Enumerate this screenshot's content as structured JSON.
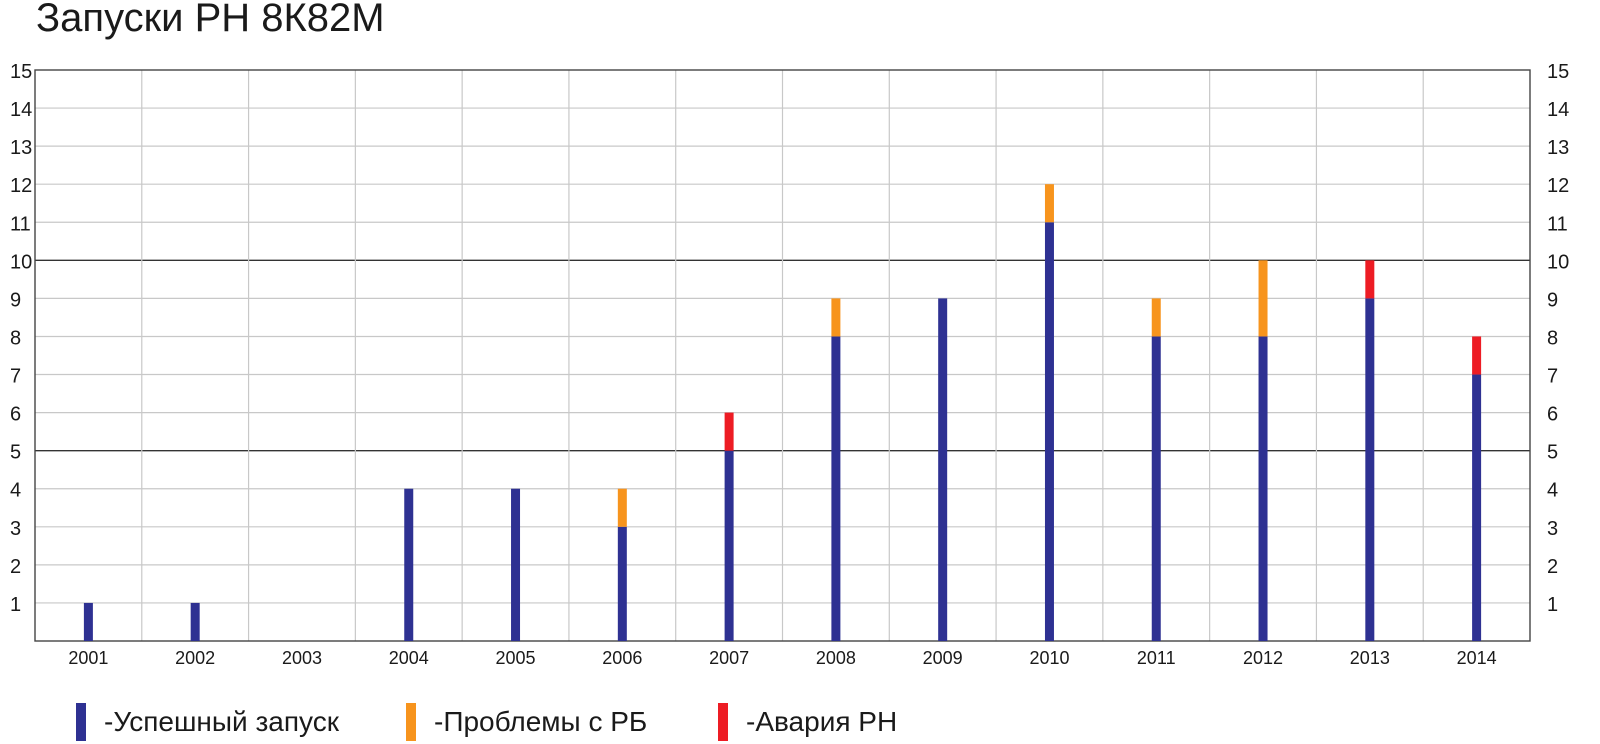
{
  "chart_data": {
    "type": "bar",
    "stacked": true,
    "title": "Запуски РН 8К82М",
    "xlabel": "",
    "ylabel": "",
    "ylim": [
      0,
      15
    ],
    "y_ticks": [
      1,
      2,
      3,
      4,
      5,
      6,
      7,
      8,
      9,
      10,
      11,
      12,
      13,
      14,
      15
    ],
    "y_axis_both_sides": true,
    "grid": true,
    "emphasized_gridlines": [
      5,
      10
    ],
    "categories": [
      "2001",
      "2002",
      "2003",
      "2004",
      "2005",
      "2006",
      "2007",
      "2008",
      "2009",
      "2010",
      "2011",
      "2012",
      "2013",
      "2014"
    ],
    "series": [
      {
        "name": "-Успешный запуск",
        "color": "#2e3192",
        "values": [
          1,
          1,
          0,
          4,
          4,
          3,
          5,
          8,
          9,
          11,
          8,
          8,
          9,
          7
        ]
      },
      {
        "name": "-Проблемы с РБ",
        "color": "#f7941d",
        "values": [
          0,
          0,
          0,
          0,
          0,
          1,
          0,
          1,
          0,
          1,
          1,
          2,
          0,
          0
        ]
      },
      {
        "name": "-Авария РН",
        "color": "#ed1c24",
        "values": [
          0,
          0,
          0,
          0,
          0,
          0,
          1,
          0,
          0,
          0,
          0,
          0,
          1,
          1
        ]
      }
    ],
    "legend_position": "bottom-left"
  }
}
